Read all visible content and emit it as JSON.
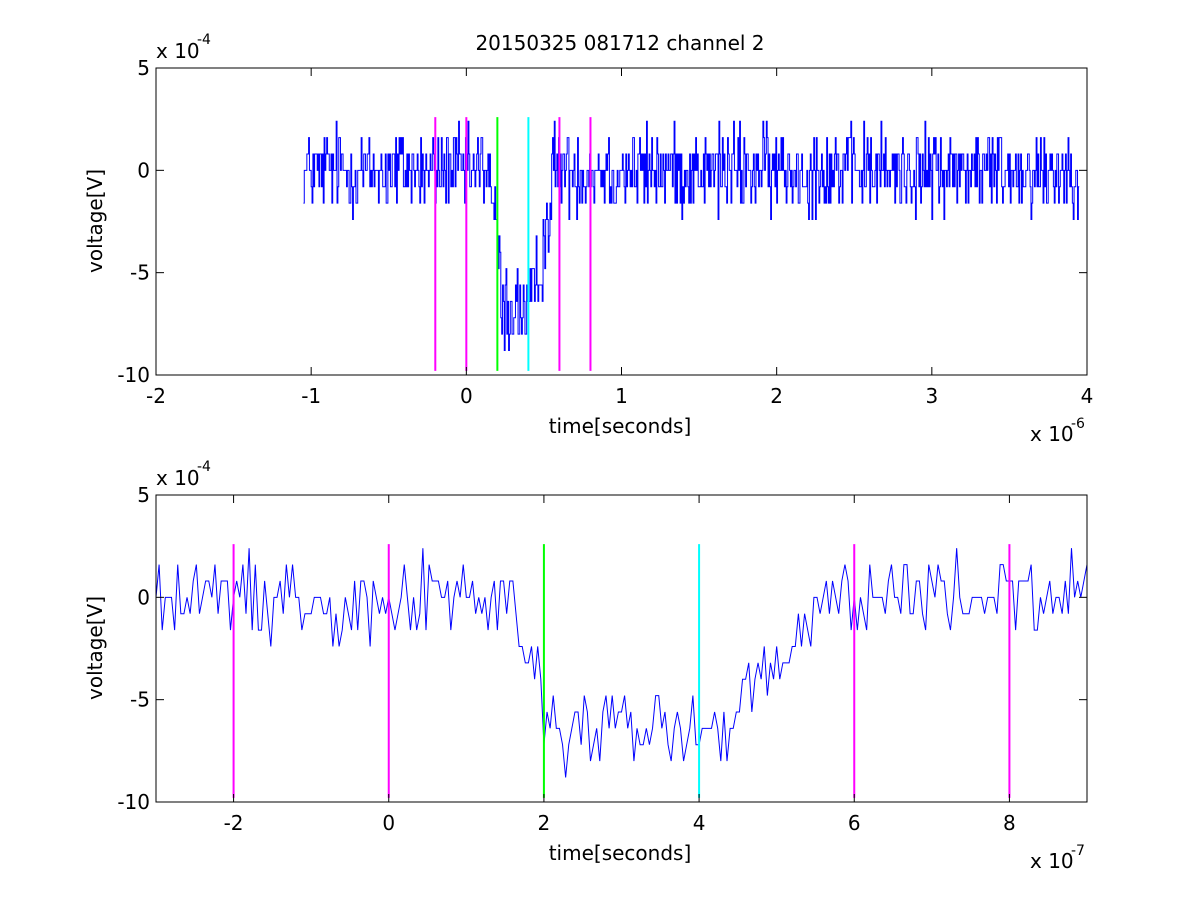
{
  "figure": {
    "title": "20150325 081712 channel 2"
  },
  "colors": {
    "signal": "#0000ff",
    "magenta_marker": "#ff00ff",
    "green_marker": "#00ff00",
    "cyan_marker": "#00ffff",
    "axes": "#000000",
    "background": "#ffffff"
  },
  "chart_data": [
    {
      "type": "line",
      "title": "20150325 081712 channel 2",
      "xlabel": "time[seconds]",
      "ylabel": "voltage[V]",
      "x_exponent_label": "x 10",
      "x_exponent": "-6",
      "y_exponent_label": "x 10",
      "y_exponent": "-4",
      "xlim": [
        -2,
        4
      ],
      "ylim": [
        -10,
        5
      ],
      "xticks": [
        -2,
        -1,
        0,
        1,
        2,
        3,
        4
      ],
      "xtick_labels": [
        "-2",
        "-1",
        "0",
        "1",
        "2",
        "3",
        "4"
      ],
      "yticks": [
        5,
        0,
        -5,
        -10
      ],
      "ytick_labels": [
        "5",
        "0",
        "-5",
        "-10"
      ],
      "grid": false,
      "signal": {
        "x_start": -1.05,
        "x_end": 3.95,
        "baseline": 0,
        "noise_amplitude": 1.6,
        "dip_start": 0.15,
        "dip_bottom_start": 0.22,
        "dip_bottom_end": 0.42,
        "dip_recover_end": 0.55,
        "dip_level": -6.8,
        "dip_min": -8.8
      },
      "markers": [
        {
          "x": -0.2,
          "color": "magenta",
          "y_from": -9.8,
          "y_to": 2.6
        },
        {
          "x": 0.0,
          "color": "magenta",
          "y_from": -9.8,
          "y_to": 2.6
        },
        {
          "x": 0.2,
          "color": "green",
          "y_from": -9.8,
          "y_to": 2.6
        },
        {
          "x": 0.4,
          "color": "cyan",
          "y_from": -9.8,
          "y_to": 2.6
        },
        {
          "x": 0.6,
          "color": "magenta",
          "y_from": -9.8,
          "y_to": 2.6
        },
        {
          "x": 0.8,
          "color": "magenta",
          "y_from": -9.8,
          "y_to": 2.6
        }
      ]
    },
    {
      "type": "line",
      "title": "",
      "xlabel": "time[seconds]",
      "ylabel": "voltage[V]",
      "x_exponent_label": "x 10",
      "x_exponent": "-7",
      "y_exponent_label": "x 10",
      "y_exponent": "-4",
      "xlim": [
        -3,
        9
      ],
      "ylim": [
        -10,
        5
      ],
      "xticks": [
        -2,
        0,
        2,
        4,
        6,
        8
      ],
      "xtick_labels": [
        "-2",
        "0",
        "2",
        "4",
        "6",
        "8"
      ],
      "yticks": [
        5,
        0,
        -5,
        -10
      ],
      "ytick_labels": [
        "5",
        "0",
        "-5",
        "-10"
      ],
      "grid": false,
      "signal": {
        "x_start": -3,
        "x_end": 9,
        "baseline": 0,
        "noise_amplitude": 1.6,
        "dip_start": 1.5,
        "dip_bottom_start": 2.0,
        "dip_bottom_end": 4.3,
        "dip_recover_end": 5.5,
        "dip_level": -6.5,
        "dip_min": -8.8
      },
      "markers": [
        {
          "x": -2,
          "color": "magenta",
          "y_from": -9.8,
          "y_to": 2.6
        },
        {
          "x": 0,
          "color": "magenta",
          "y_from": -9.8,
          "y_to": 2.6
        },
        {
          "x": 2,
          "color": "green",
          "y_from": -9.8,
          "y_to": 2.6
        },
        {
          "x": 4,
          "color": "cyan",
          "y_from": -9.8,
          "y_to": 2.6
        },
        {
          "x": 6,
          "color": "magenta",
          "y_from": -9.8,
          "y_to": 2.6
        },
        {
          "x": 8,
          "color": "magenta",
          "y_from": -9.8,
          "y_to": 2.6
        }
      ]
    }
  ]
}
